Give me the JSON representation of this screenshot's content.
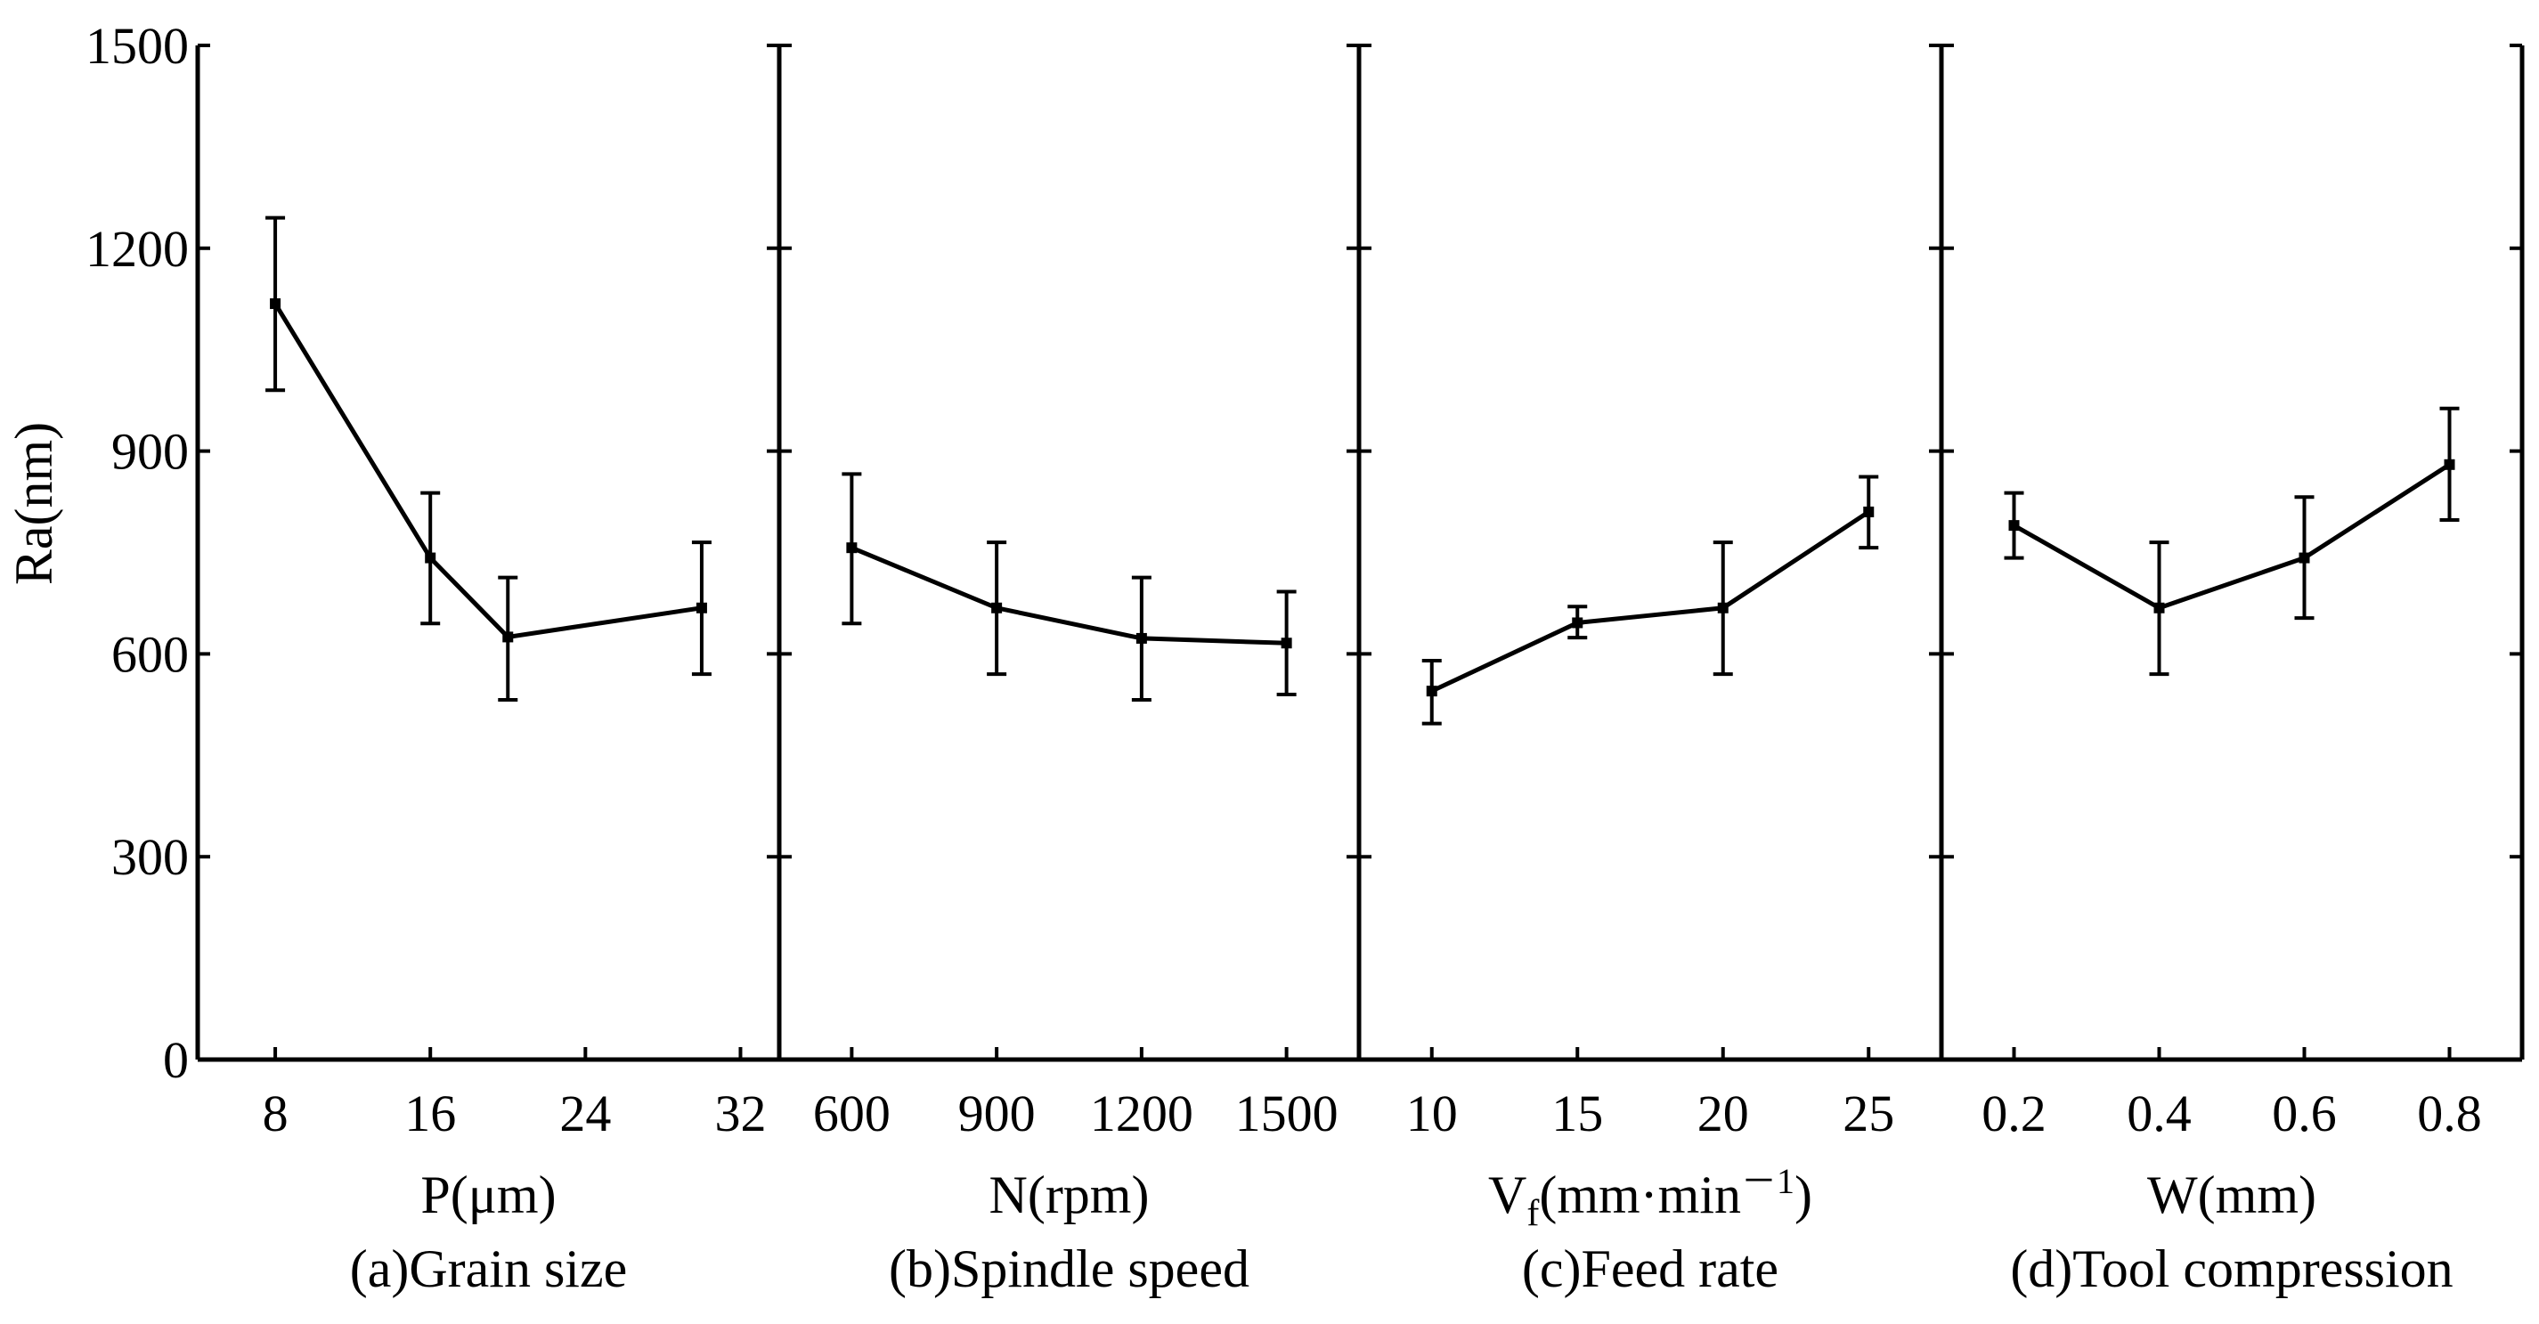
{
  "chart_data": {
    "type": "line",
    "y_axis": {
      "label": "Ra(nm)",
      "ylim": [
        0,
        1500
      ],
      "ticks": [
        0,
        300,
        600,
        900,
        1200,
        1500
      ],
      "tick_labels": [
        "0",
        "300",
        "600",
        "900",
        "1200",
        "1500"
      ]
    },
    "panels": [
      {
        "xlabel_main": "P(μm)",
        "caption": "(a)Grain size",
        "xlim": [
          4,
          34
        ],
        "ticks": [
          8,
          16,
          24,
          32
        ],
        "tick_labels": [
          "8",
          "16",
          "24",
          "32"
        ],
        "points": [
          {
            "x": 8,
            "y": 1118,
            "err_low": 990,
            "err_high": 1245
          },
          {
            "x": 16,
            "y": 742,
            "err_low": 645,
            "err_high": 838
          },
          {
            "x": 20,
            "y": 625,
            "err_low": 532,
            "err_high": 713
          },
          {
            "x": 30,
            "y": 668,
            "err_low": 570,
            "err_high": 765
          }
        ]
      },
      {
        "xlabel_main": "N(rpm)",
        "caption": "(b)Spindle speed",
        "xlim": [
          450,
          1650
        ],
        "ticks": [
          600,
          900,
          1200,
          1500
        ],
        "tick_labels": [
          "600",
          "900",
          "1200",
          "1500"
        ],
        "points": [
          {
            "x": 600,
            "y": 757,
            "err_low": 645,
            "err_high": 866
          },
          {
            "x": 900,
            "y": 668,
            "err_low": 570,
            "err_high": 765
          },
          {
            "x": 1200,
            "y": 623,
            "err_low": 532,
            "err_high": 713
          },
          {
            "x": 1500,
            "y": 616,
            "err_low": 540,
            "err_high": 692
          }
        ]
      },
      {
        "xlabel_main": "V",
        "xlabel_sub": "f",
        "xlabel_rest": "(mm·min",
        "xlabel_sup": "－1",
        "xlabel_close": ")",
        "caption": "(c)Feed rate",
        "xlim": [
          7.5,
          27.5
        ],
        "ticks": [
          10,
          15,
          20,
          25
        ],
        "tick_labels": [
          "10",
          "15",
          "20",
          "25"
        ],
        "points": [
          {
            "x": 10,
            "y": 545,
            "err_low": 497,
            "err_high": 590
          },
          {
            "x": 15,
            "y": 646,
            "err_low": 624,
            "err_high": 670
          },
          {
            "x": 20,
            "y": 668,
            "err_low": 570,
            "err_high": 765
          },
          {
            "x": 25,
            "y": 810,
            "err_low": 757,
            "err_high": 862
          }
        ]
      },
      {
        "xlabel_main": "W(mm)",
        "caption": "(d)Tool compression",
        "xlim": [
          0.1,
          0.9
        ],
        "ticks": [
          0.2,
          0.4,
          0.6,
          0.8
        ],
        "tick_labels": [
          "0.2",
          "0.4",
          "0.6",
          "0.8"
        ],
        "points": [
          {
            "x": 0.2,
            "y": 790,
            "err_low": 742,
            "err_high": 838
          },
          {
            "x": 0.4,
            "y": 668,
            "err_low": 570,
            "err_high": 765
          },
          {
            "x": 0.6,
            "y": 742,
            "err_low": 653,
            "err_high": 832
          },
          {
            "x": 0.8,
            "y": 880,
            "err_low": 798,
            "err_high": 963
          }
        ]
      }
    ]
  }
}
